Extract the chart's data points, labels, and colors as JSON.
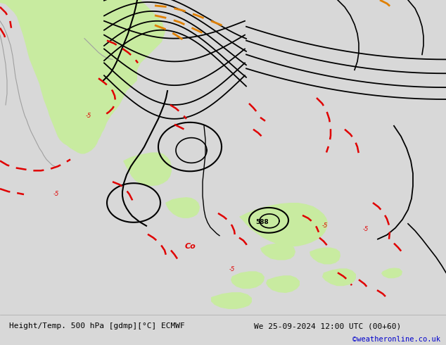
{
  "title_left": "Height/Temp. 500 hPa [gdmp][°C] ECMWF",
  "title_right": "We 25-09-2024 12:00 UTC (00+60)",
  "subtitle": "©weatheronline.co.uk",
  "subtitle_color": "#0000cc",
  "fig_width": 6.34,
  "fig_height": 4.9,
  "dpi": 100,
  "green": "#c8eba0",
  "gray_bg": "#d8d8d8",
  "coast_color": "#a0a0a0"
}
